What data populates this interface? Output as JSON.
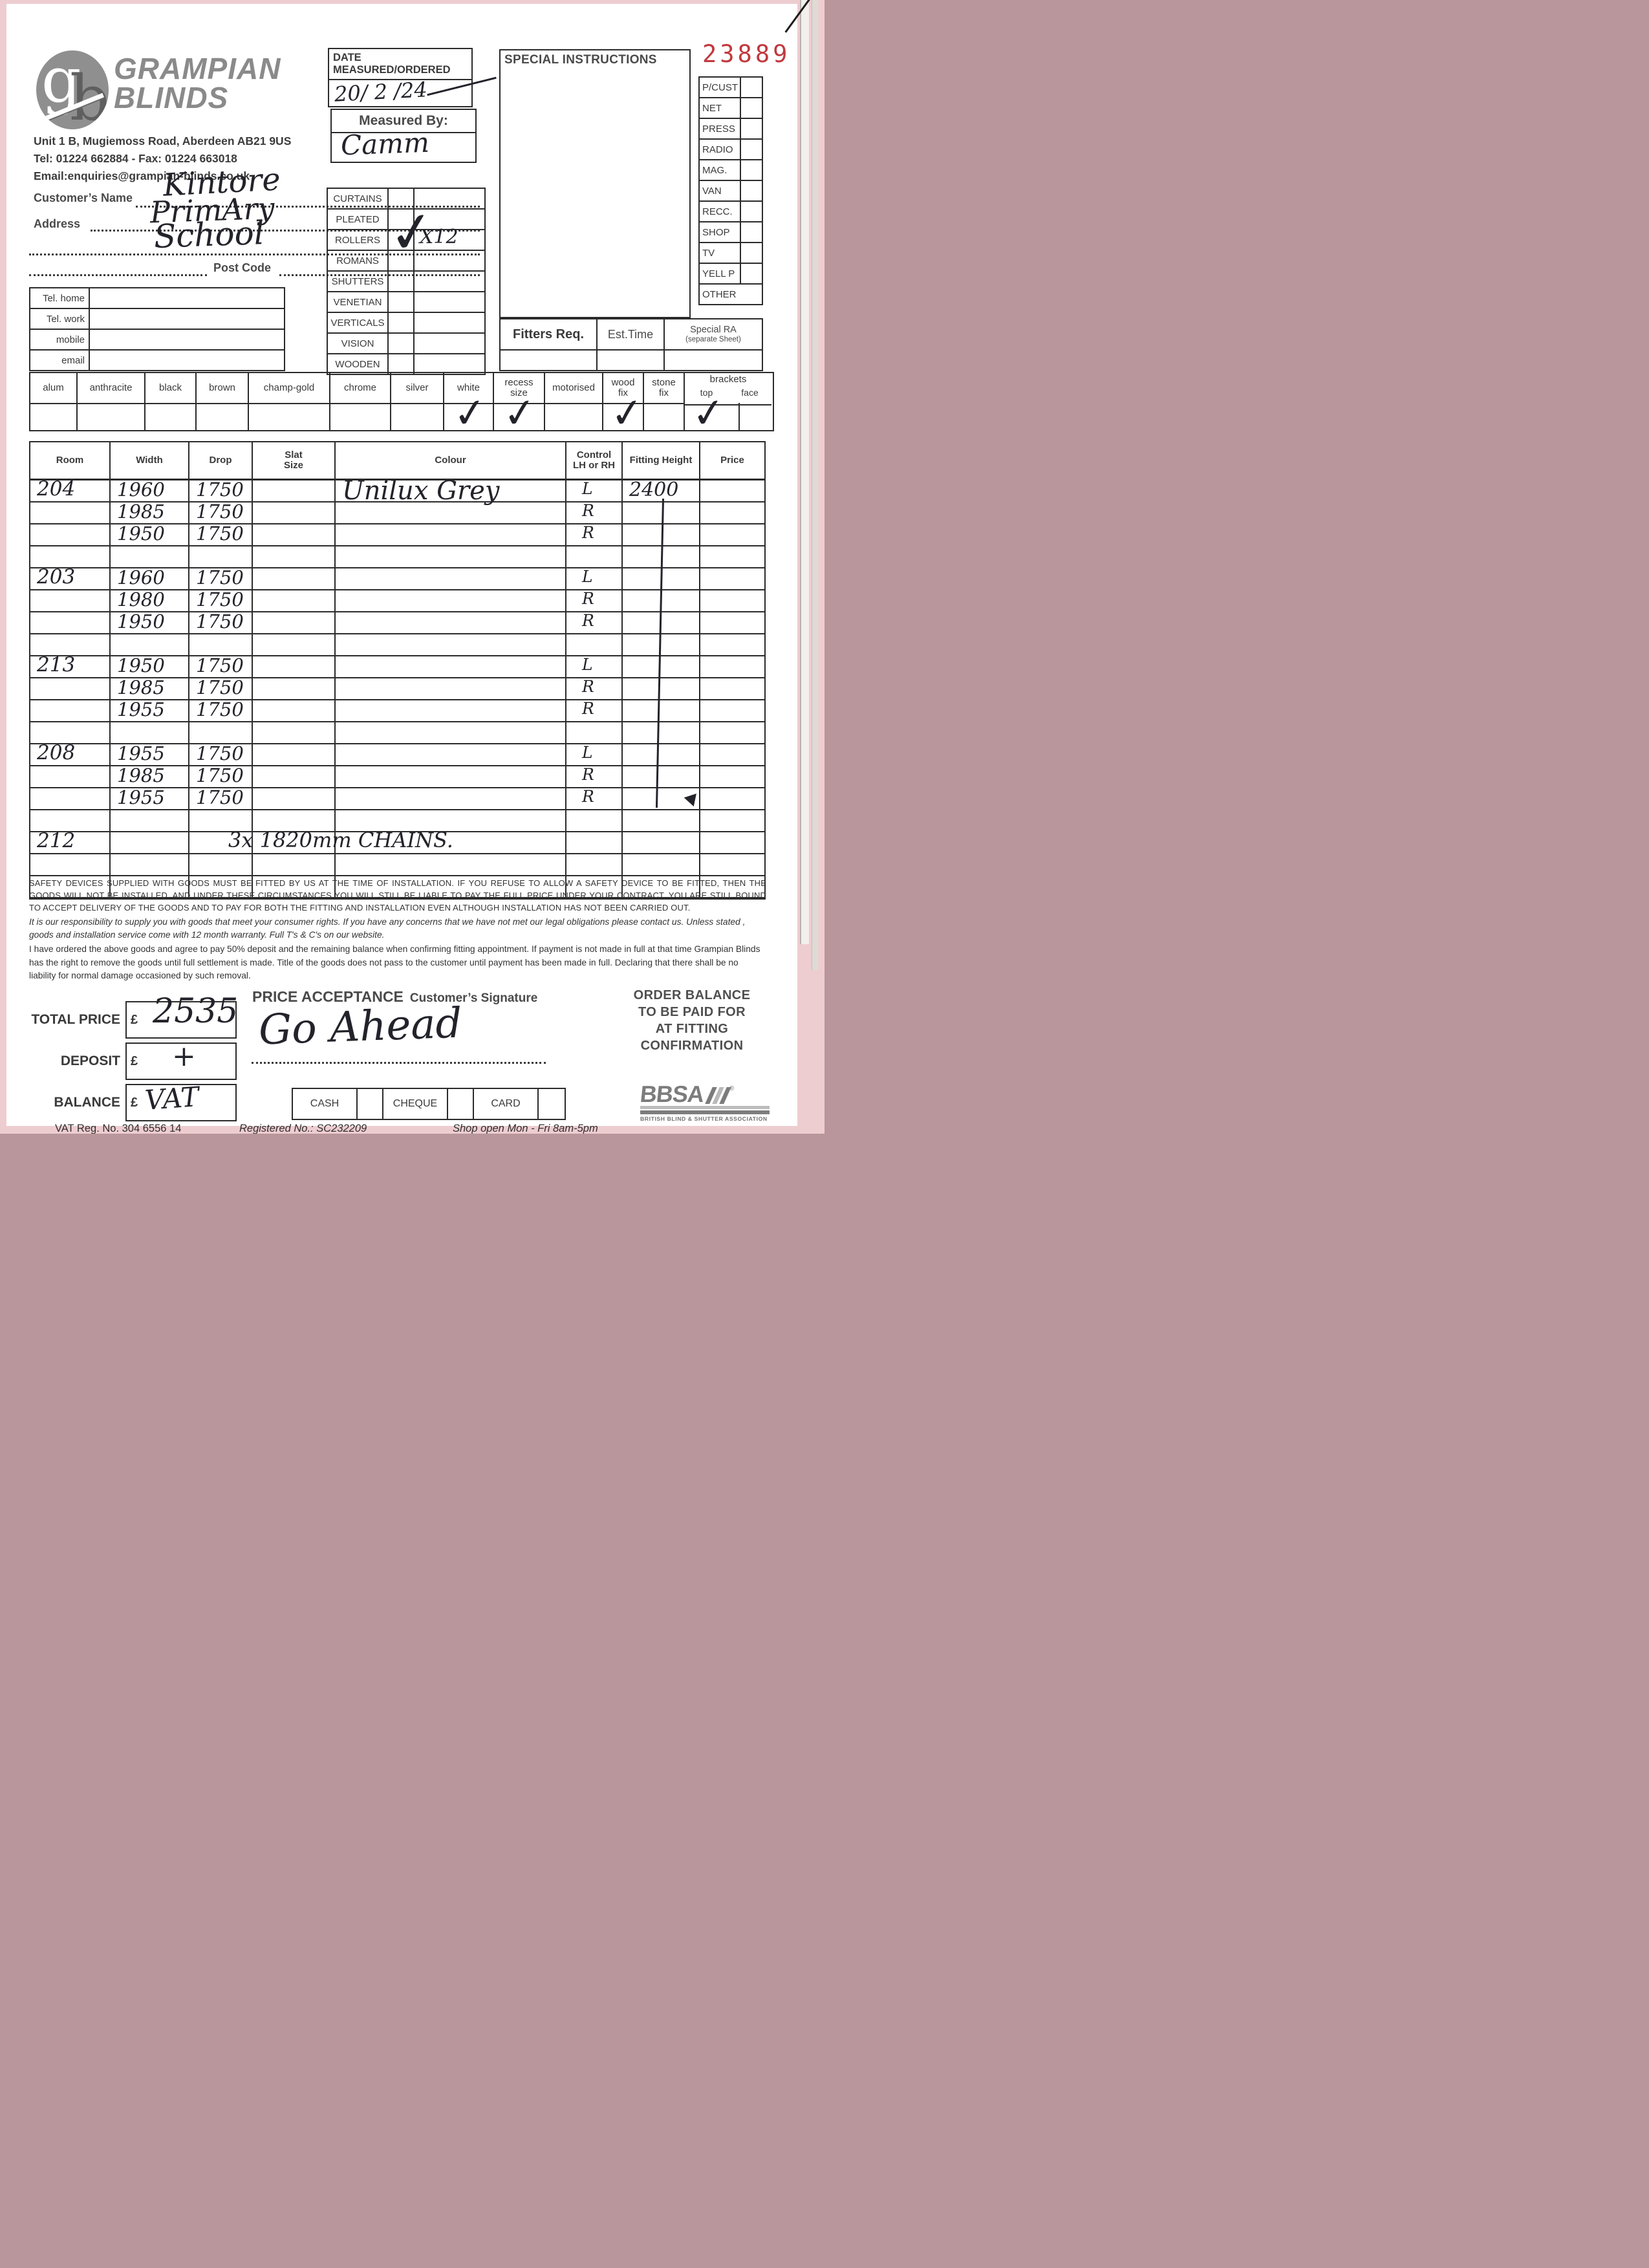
{
  "brand": {
    "logo_g": "g",
    "logo_b": "b",
    "name_line1": "GRAMPIAN",
    "name_line2": "BLINDS",
    "address": "Unit 1 B, Mugiemoss Road, Aberdeen AB21 9US",
    "tel_fax": "Tel: 01224 662884   -   Fax: 01224 663018",
    "email": "Email:enquiries@grampian-blinds.co.uk"
  },
  "order_number": "23889",
  "order_number_color": "#c0393e",
  "date_box": {
    "label_line1": "DATE",
    "label_line2": "MEASURED/ORDERED",
    "value": "20/ 2 /24"
  },
  "measured_by": {
    "label": "Measured By:",
    "value": "Camm"
  },
  "special_instructions": {
    "label": "SPECIAL INSTRUCTIONS",
    "value": ""
  },
  "source_list": {
    "items": [
      "P/CUST",
      "NET",
      "PRESS",
      "RADIO",
      "MAG.",
      "VAN",
      "RECC.",
      "SHOP",
      "TV",
      "YELL P",
      "OTHER"
    ]
  },
  "customer": {
    "name_label": "Customer’s Name",
    "name_value": "Kintore",
    "address_label": "Address",
    "address_line1": "PrimAry",
    "address_line2": "School",
    "postcode_label": "Post Code",
    "postcode_value": "",
    "contact_rows": [
      {
        "label": "Tel. home",
        "value": ""
      },
      {
        "label": "Tel. work",
        "value": ""
      },
      {
        "label": "mobile",
        "value": ""
      },
      {
        "label": "email",
        "value": ""
      }
    ]
  },
  "products": {
    "rows": [
      {
        "label": "CURTAINS",
        "checked": false,
        "note": ""
      },
      {
        "label": "PLEATED",
        "checked": false,
        "note": ""
      },
      {
        "label": "ROLLERS",
        "checked": true,
        "note": "X12"
      },
      {
        "label": "ROMANS",
        "checked": false,
        "note": ""
      },
      {
        "label": "SHUTTERS",
        "checked": false,
        "note": ""
      },
      {
        "label": "VENETIAN",
        "checked": false,
        "note": ""
      },
      {
        "label": "VERTICALS",
        "checked": false,
        "note": ""
      },
      {
        "label": "VISION",
        "checked": false,
        "note": ""
      },
      {
        "label": "WOODEN",
        "checked": false,
        "note": ""
      }
    ]
  },
  "fitters": {
    "req_label": "Fitters Req.",
    "est_label": "Est.Time",
    "ra_label": "Special RA",
    "ra_sub": "(separate Sheet)"
  },
  "options": {
    "cells": [
      {
        "label": "alum",
        "checked": false
      },
      {
        "label": "anthracite",
        "checked": false
      },
      {
        "label": "black",
        "checked": false
      },
      {
        "label": "brown",
        "checked": false
      },
      {
        "label": "champ-gold",
        "checked": false
      },
      {
        "label": "chrome",
        "checked": false
      },
      {
        "label": "silver",
        "checked": false
      },
      {
        "label": "white",
        "checked": true
      },
      {
        "label": "recess size",
        "wrap": true,
        "checked": true
      },
      {
        "label": "motorised",
        "checked": false
      },
      {
        "label": "wood fix",
        "wrap": true,
        "checked": true
      },
      {
        "label": "stone fix",
        "wrap": true,
        "checked": false
      },
      {
        "label": "brackets",
        "sub": [
          "top",
          "face"
        ],
        "sub_checked": [
          true,
          false
        ]
      }
    ]
  },
  "order_table": {
    "headers": [
      "Room",
      "Width",
      "Drop",
      "Slat\nSize",
      "Colour",
      "Control\nLH or RH",
      "Fitting Height",
      "Price"
    ],
    "rows": [
      {
        "room": "204",
        "width": "1960",
        "drop": "1750",
        "slat": "",
        "colour": "Unilux Grey",
        "control": "L",
        "fitting": "2400",
        "price": ""
      },
      {
        "room": "",
        "width": "1985",
        "drop": "1750",
        "slat": "",
        "colour": "",
        "control": "R",
        "fitting": "",
        "price": ""
      },
      {
        "room": "",
        "width": "1950",
        "drop": "1750",
        "slat": "",
        "colour": "",
        "control": "R",
        "fitting": "",
        "price": ""
      },
      {
        "room": "",
        "width": "",
        "drop": "",
        "slat": "",
        "colour": "",
        "control": "",
        "fitting": "",
        "price": ""
      },
      {
        "room": "203",
        "width": "1960",
        "drop": "1750",
        "slat": "",
        "colour": "",
        "control": "L",
        "fitting": "",
        "price": ""
      },
      {
        "room": "",
        "width": "1980",
        "drop": "1750",
        "slat": "",
        "colour": "",
        "control": "R",
        "fitting": "",
        "price": ""
      },
      {
        "room": "",
        "width": "1950",
        "drop": "1750",
        "slat": "",
        "colour": "",
        "control": "R",
        "fitting": "",
        "price": ""
      },
      {
        "room": "",
        "width": "",
        "drop": "",
        "slat": "",
        "colour": "",
        "control": "",
        "fitting": "",
        "price": ""
      },
      {
        "room": "213",
        "width": "1950",
        "drop": "1750",
        "slat": "",
        "colour": "",
        "control": "L",
        "fitting": "",
        "price": ""
      },
      {
        "room": "",
        "width": "1985",
        "drop": "1750",
        "slat": "",
        "colour": "",
        "control": "R",
        "fitting": "",
        "price": ""
      },
      {
        "room": "",
        "width": "1955",
        "drop": "1750",
        "slat": "",
        "colour": "",
        "control": "R",
        "fitting": "",
        "price": ""
      },
      {
        "room": "",
        "width": "",
        "drop": "",
        "slat": "",
        "colour": "",
        "control": "",
        "fitting": "",
        "price": ""
      },
      {
        "room": "208",
        "width": "1955",
        "drop": "1750",
        "slat": "",
        "colour": "",
        "control": "L",
        "fitting": "",
        "price": ""
      },
      {
        "room": "",
        "width": "1985",
        "drop": "1750",
        "slat": "",
        "colour": "",
        "control": "R",
        "fitting": "",
        "price": ""
      },
      {
        "room": "",
        "width": "1955",
        "drop": "1750",
        "slat": "",
        "colour": "",
        "control": "R",
        "fitting": "",
        "price": "",
        "marker": "arrow"
      },
      {
        "room": "",
        "width": "",
        "drop": "",
        "slat": "",
        "colour": "",
        "control": "",
        "fitting": "",
        "price": ""
      },
      {
        "room": "212",
        "width": "",
        "drop": "",
        "slat": "",
        "colour": "",
        "control": "",
        "fitting": "",
        "price": "",
        "chains_note": "3x  1820mm  CHAINS."
      },
      {
        "room": "",
        "width": "",
        "drop": "",
        "slat": "",
        "colour": "",
        "control": "",
        "fitting": "",
        "price": ""
      },
      {
        "room": "",
        "width": "",
        "drop": "",
        "slat": "",
        "colour": "",
        "control": "",
        "fitting": "",
        "price": ""
      }
    ]
  },
  "legal": {
    "para1": "SAFETY DEVICES SUPPLIED WITH GOODS MUST BE FITTED BY US AT THE TIME OF INSTALLATION. IF YOU REFUSE TO ALLOW A SAFETY DEVICE TO BE FITTED, THEN THE GOODS WILL NOT BE INSTALLED, AND UNDER THESE CIRCUMSTANCES YOU WILL STILL BE LIABLE TO PAY THE FULL PRICE UNDER YOUR CONTRACT. YOU ARE STILL BOUND TO ACCEPT DELIVERY OF THE GOODS AND TO PAY FOR BOTH THE FITTING AND INSTALLATION EVEN ALTHOUGH INSTALLATION HAS NOT BEEN CARRIED OUT.",
    "para2": "It is our responsibility to supply you with goods that meet your consumer rights. If you have any concerns that we have not met our legal obligations please contact us. Unless stated , goods and installation service come with 12 month warranty. Full T's & C's on our website.",
    "para3": "I have ordered the above goods and agree to pay 50% deposit and the remaining balance when confirming fitting appointment. If payment is not made in full at that time Grampian Blinds has the right to remove the goods until full settlement is made. Title of the goods does not pass to the customer until payment has been made in full. Declaring that there shall be no liability for normal damage occasioned by such removal."
  },
  "totals": {
    "rows": [
      {
        "label": "TOTAL PRICE",
        "currency": "£",
        "value": "2535",
        "style": "total"
      },
      {
        "label": "DEPOSIT",
        "currency": "£",
        "value": "+",
        "style": "deposit"
      },
      {
        "label": "BALANCE",
        "currency": "£",
        "value": "VAT",
        "style": "balance"
      }
    ]
  },
  "acceptance": {
    "title": "PRICE ACCEPTANCE",
    "subtitle": "Customer’s Signature",
    "signature": "Go Ahead",
    "payment_options": [
      "CASH",
      "CHEQUE",
      "CARD"
    ]
  },
  "order_balance_note": {
    "lines": [
      "ORDER BALANCE",
      "TO BE PAID FOR",
      "AT FITTING",
      "CONFIRMATION"
    ]
  },
  "bbsa": {
    "logo_text": "BBSA",
    "reg_mark": "®",
    "caption": "BRITISH BLIND & SHUTTER ASSOCIATION"
  },
  "footer": {
    "vat": "VAT Reg. No. 304 6556 14",
    "registered": "Registered No.: SC232209",
    "hours": "Shop open Mon - Fri 8am-5pm"
  }
}
